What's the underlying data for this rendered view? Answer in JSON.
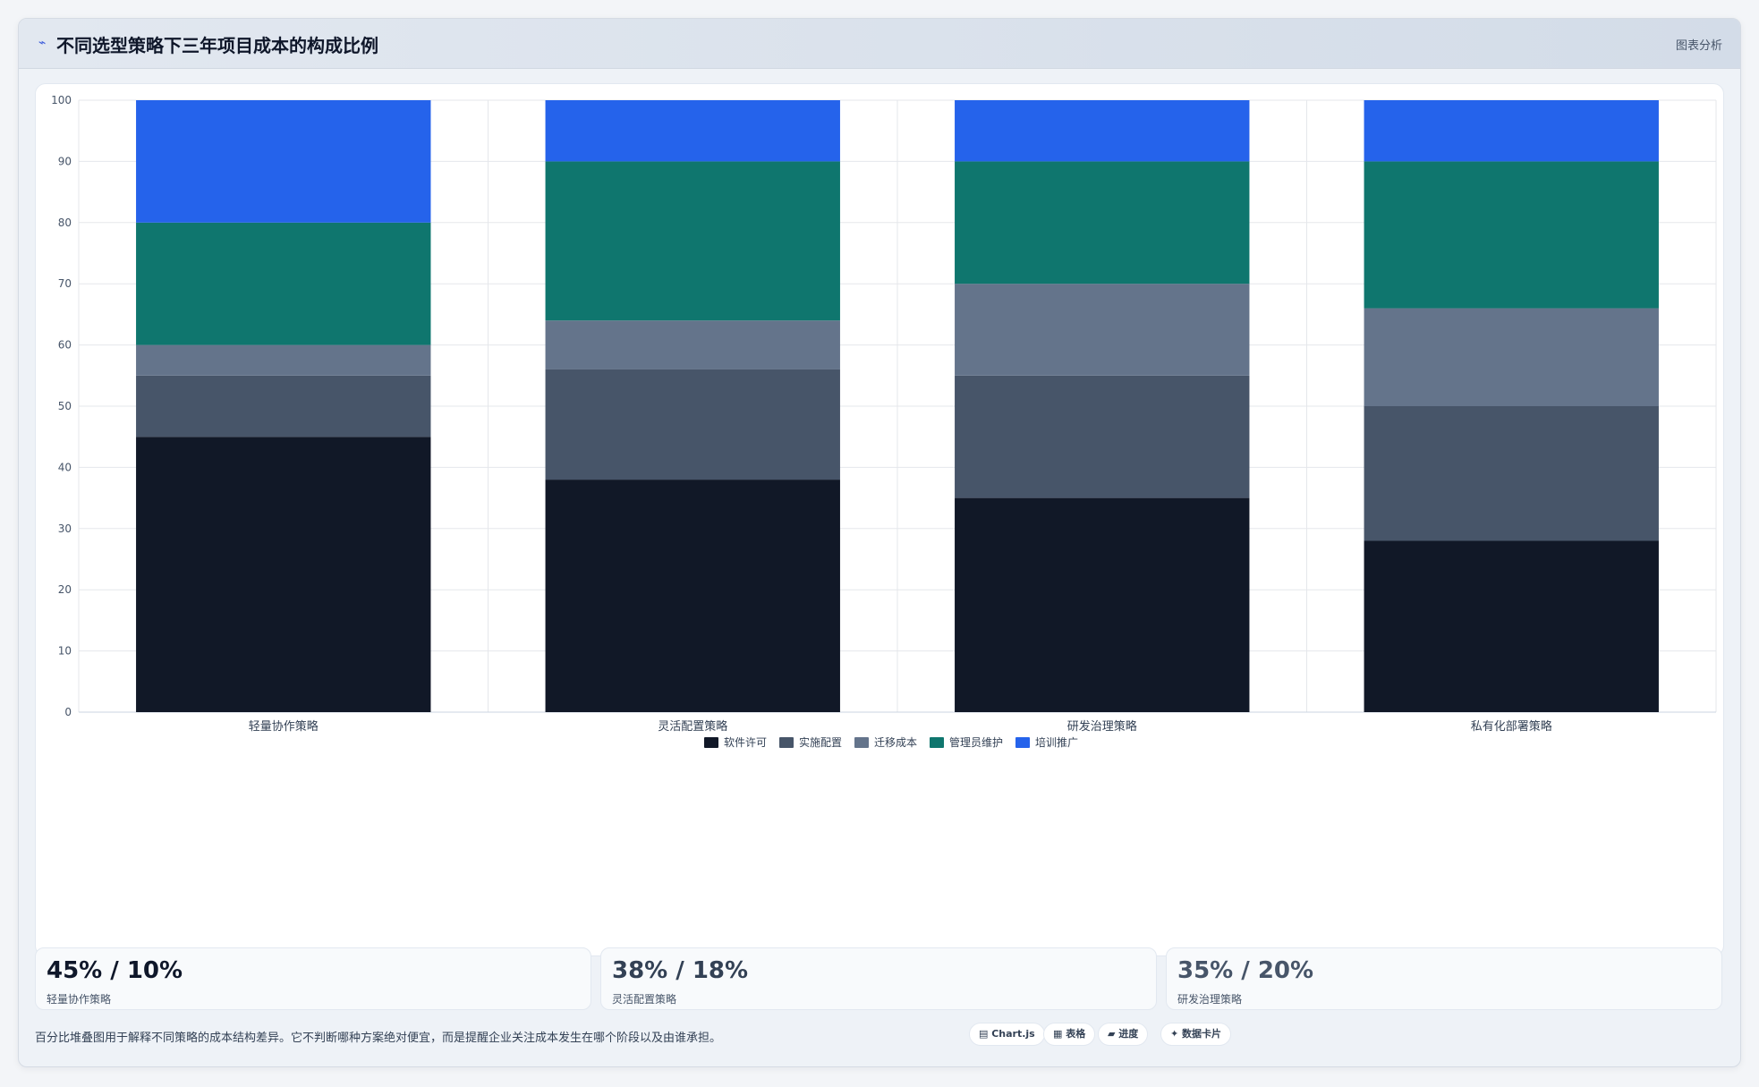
{
  "header": {
    "logo_glyph": "⌁",
    "title": "不同选型策略下三年项目成本的构成比例",
    "action_label": "图表分析"
  },
  "chart_data": {
    "type": "bar",
    "stacked": true,
    "categories": [
      "轻量协作策略",
      "灵活配置策略",
      "研发治理策略",
      "私有化部署策略"
    ],
    "series": [
      {
        "name": "软件许可",
        "color": "#111827",
        "values": [
          45,
          38,
          35,
          28
        ]
      },
      {
        "name": "实施配置",
        "color": "#475569",
        "values": [
          10,
          18,
          20,
          22
        ]
      },
      {
        "name": "迁移成本",
        "color": "#64748b",
        "values": [
          5,
          8,
          15,
          16
        ]
      },
      {
        "name": "管理员维护",
        "color": "#0f766e",
        "values": [
          20,
          26,
          20,
          24
        ]
      },
      {
        "name": "培训推广",
        "color": "#2563eb",
        "values": [
          20,
          10,
          10,
          10
        ]
      }
    ],
    "ylim": [
      0,
      100
    ],
    "yticks": [
      0,
      10,
      20,
      30,
      40,
      50,
      60,
      70,
      80,
      90,
      100
    ],
    "grid": true,
    "legend_position": "bottom-center"
  },
  "stats": [
    {
      "value": "45% / 10%",
      "label": "轻量协作策略",
      "color": "#0f172a"
    },
    {
      "value": "38% / 18%",
      "label": "灵活配置策略",
      "color": "#334155"
    },
    {
      "value": "35% / 20%",
      "label": "研发治理策略",
      "color": "#475569"
    }
  ],
  "footnote": "百分比堆叠图用于解释不同策略的成本结构差异。它不判断哪种方案绝对便宜，而是提醒企业关注成本发生在哪个阶段以及由谁承担。",
  "pills": [
    {
      "label": "▤ Chart.js"
    },
    {
      "label": "▦ 表格"
    },
    {
      "label": "▰ 进度"
    },
    {
      "label": "✦ 数据卡片"
    }
  ]
}
